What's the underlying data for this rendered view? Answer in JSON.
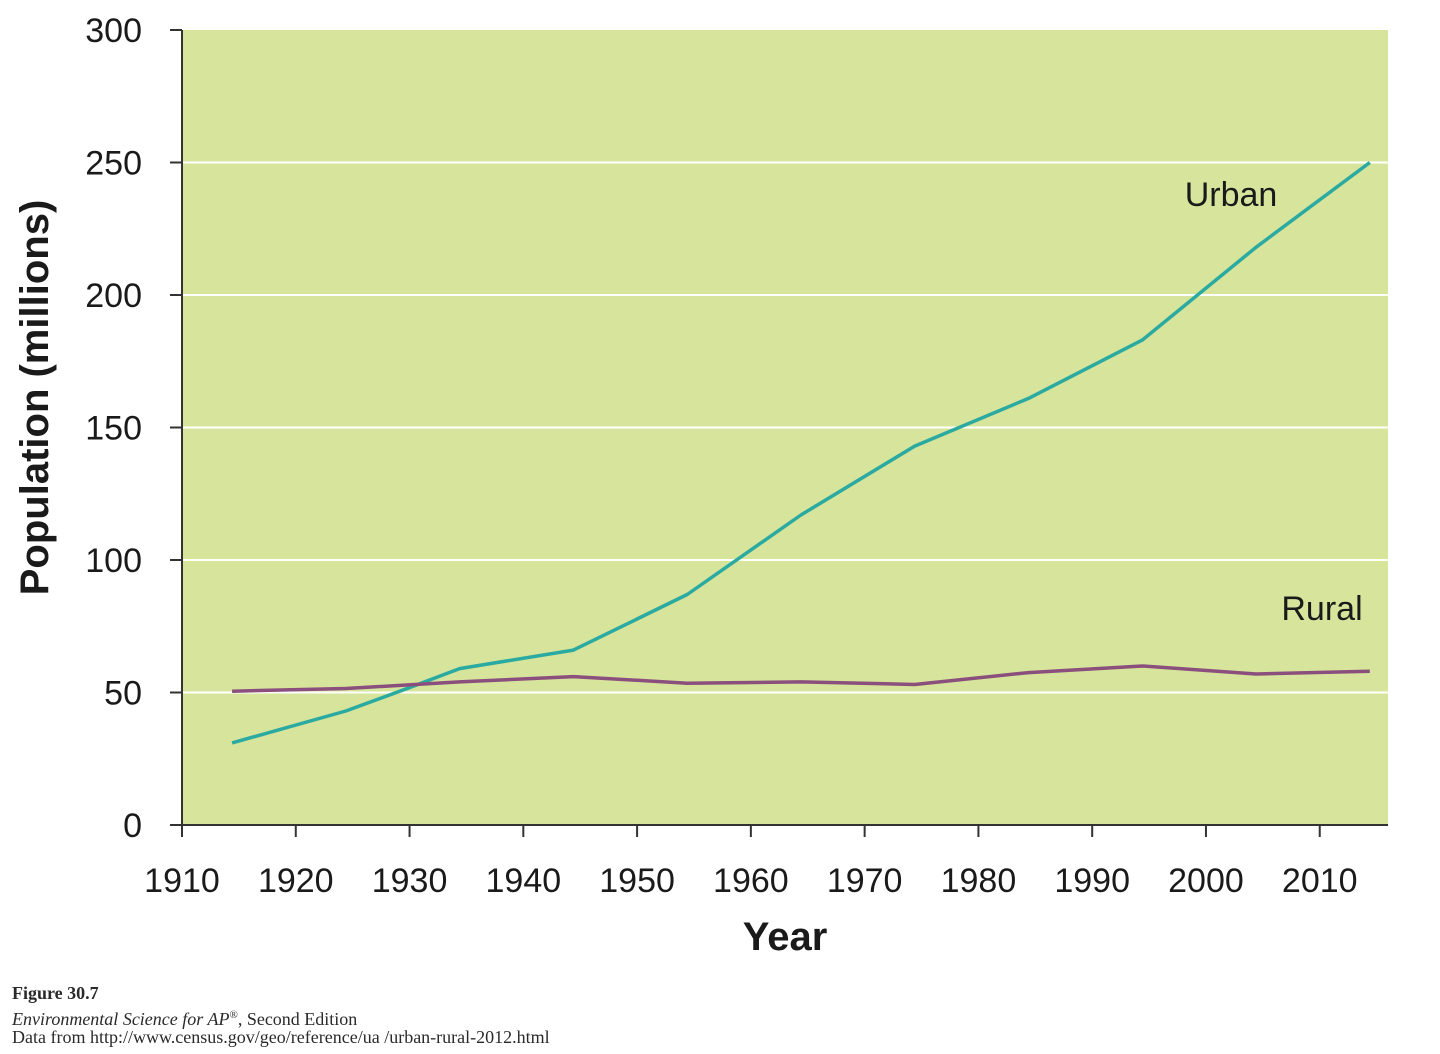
{
  "chart_data": {
    "type": "line",
    "xlabel": "Year",
    "ylabel": "Population (millions)",
    "xlim": [
      1910,
      2016
    ],
    "ylim": [
      0,
      300
    ],
    "xticks": [
      1910,
      1920,
      1930,
      1940,
      1950,
      1960,
      1970,
      1980,
      1990,
      2000,
      2010
    ],
    "yticks": [
      0,
      50,
      100,
      150,
      200,
      250,
      300
    ],
    "grid": true,
    "background": "#d6e49c",
    "series": [
      {
        "name": "Urban",
        "color": "#2aaaa0",
        "x": [
          1914.4,
          1924.4,
          1930.1,
          1934.4,
          1944.4,
          1954.4,
          1964.4,
          1974.4,
          1984.4,
          1994.4,
          2004.4,
          2014.4
        ],
        "y": [
          31,
          43,
          52,
          59,
          66,
          87,
          117,
          143,
          161,
          183,
          218,
          250
        ]
      },
      {
        "name": "Rural",
        "color": "#8b4f7d",
        "x": [
          1914.4,
          1924.4,
          1934.4,
          1944.4,
          1954.4,
          1964.4,
          1974.4,
          1984.4,
          1994.4,
          2004.4,
          2014.4
        ],
        "y": [
          50.5,
          51.5,
          54,
          56,
          53.5,
          54,
          53,
          57.5,
          60,
          57,
          58
        ]
      }
    ]
  },
  "caption": {
    "figure": "Figure 30.7",
    "book_title": "Environmental Science for AP",
    "book_suffix": ", Second Edition",
    "book_reg": "®",
    "source": "Data from http://www.census.gov/geo/reference/ua /urban-rural-2012.html"
  }
}
